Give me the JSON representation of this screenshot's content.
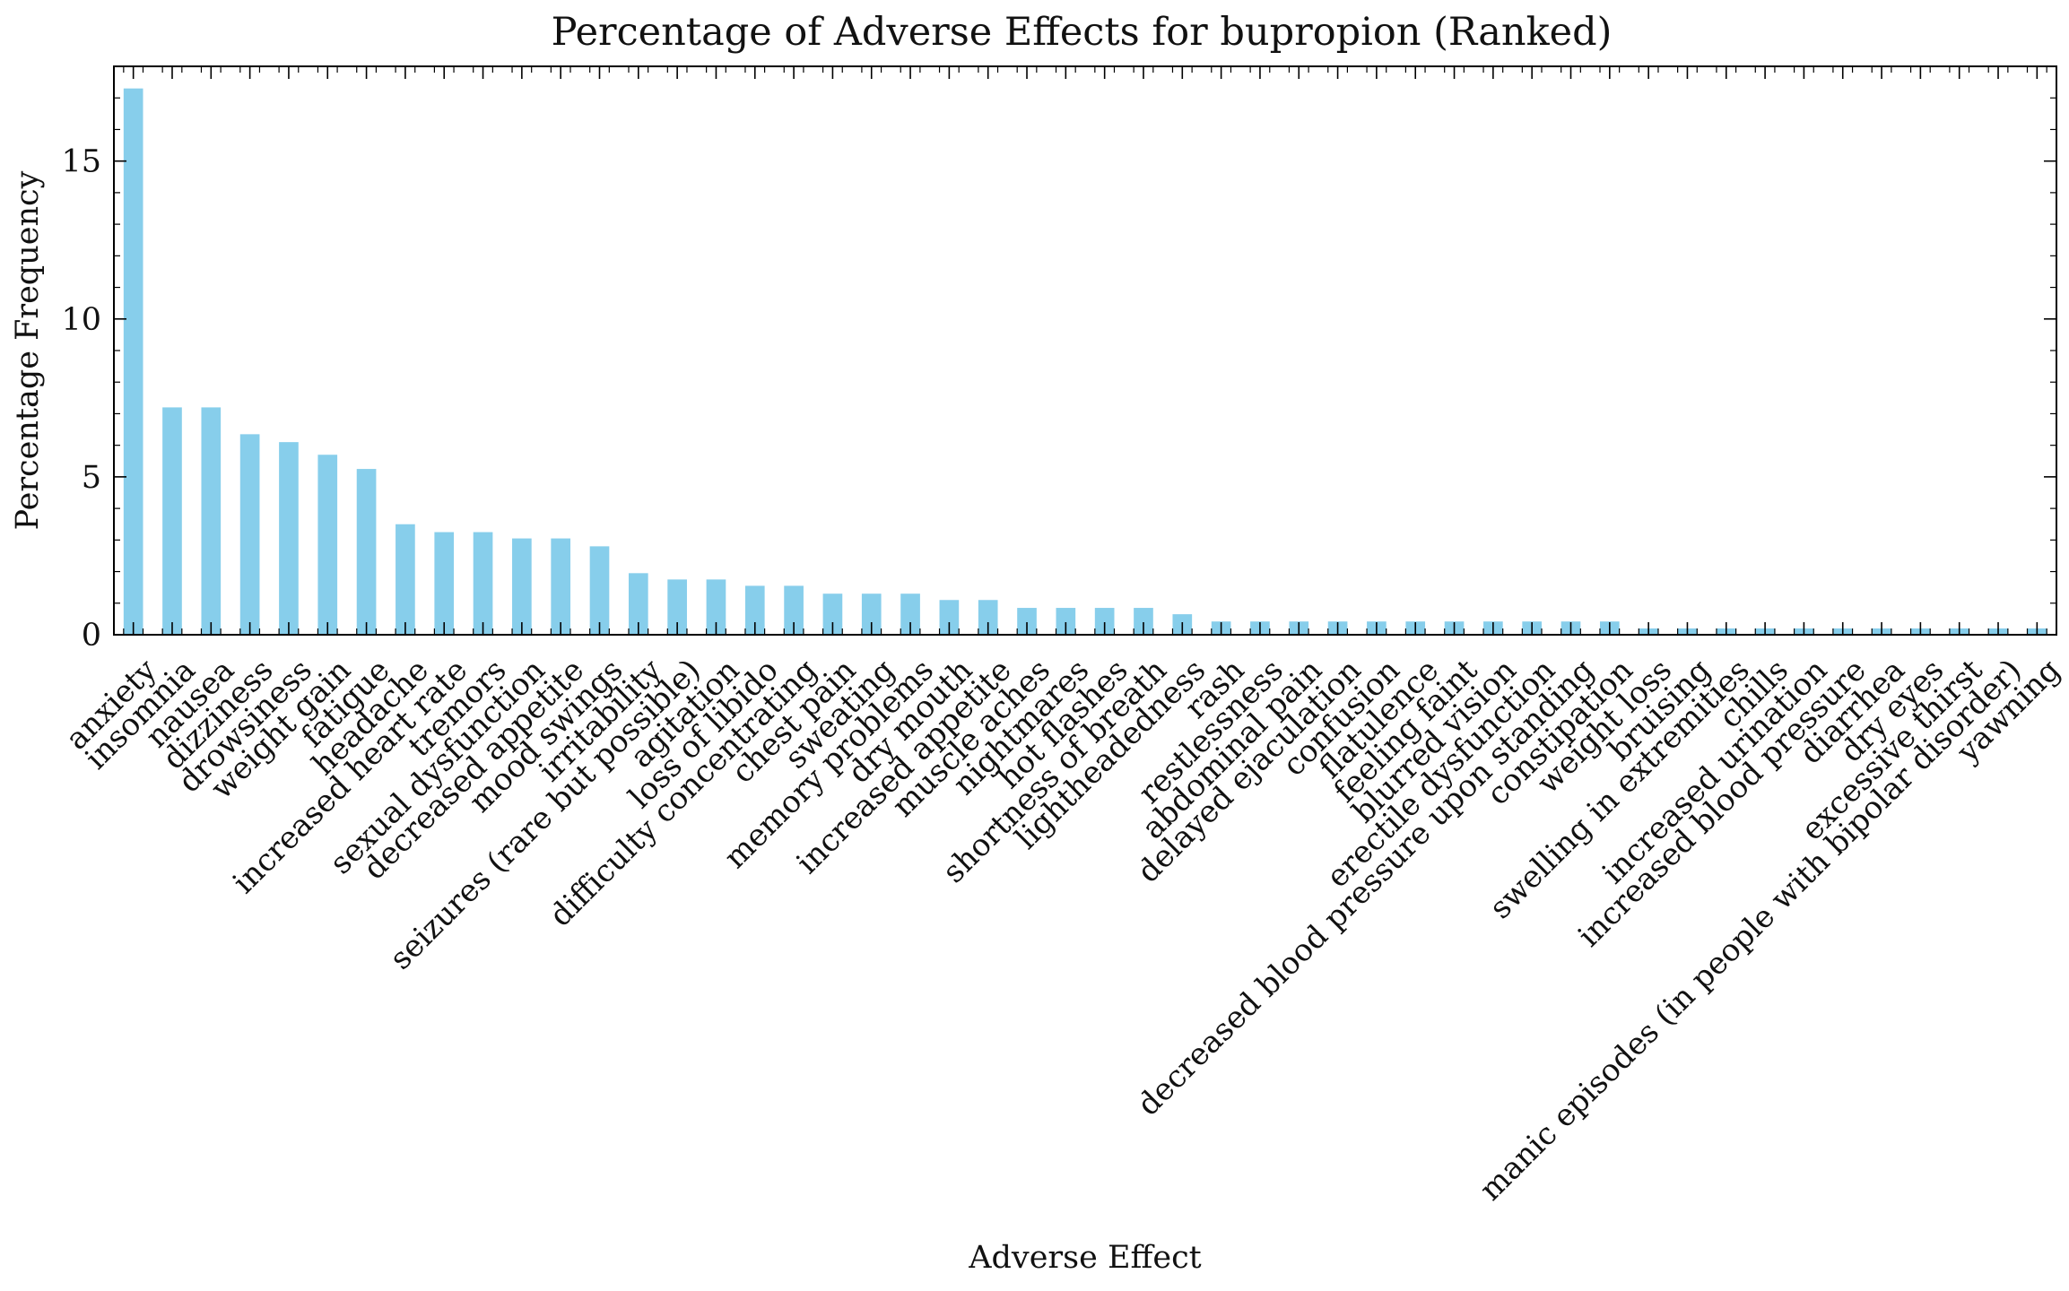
{
  "chart_data": {
    "type": "bar",
    "title": "Percentage of Adverse Effects for bupropion (Ranked)",
    "xlabel": "Adverse Effect",
    "ylabel": "Percentage Frequency",
    "ylim": [
      0,
      18
    ],
    "yticks": [
      0,
      5,
      10,
      15
    ],
    "grid": false,
    "bar_color": "#87ceeb",
    "categories": [
      "anxiety",
      "insomnia",
      "nausea",
      "dizziness",
      "drowsiness",
      "weight gain",
      "fatigue",
      "headache",
      "increased heart rate",
      "tremors",
      "sexual dysfunction",
      "decreased appetite",
      "mood swings",
      "irritability",
      "seizures (rare but possible)",
      "agitation",
      "loss of libido",
      "difficulty concentrating",
      "chest pain",
      "sweating",
      "memory problems",
      "dry mouth",
      "increased appetite",
      "muscle aches",
      "nightmares",
      "hot flashes",
      "shortness of breath",
      "lightheadedness",
      "rash",
      "restlessness",
      "abdominal pain",
      "delayed ejaculation",
      "confusion",
      "flatulence",
      "feeling faint",
      "blurred vision",
      "erectile dysfunction",
      "decreased blood pressure upon standing",
      "constipation",
      "weight loss",
      "bruising",
      "swelling in extremities",
      "chills",
      "increased urination",
      "increased blood pressure",
      "diarrhea",
      "dry eyes",
      "excessive thirst",
      "manic episodes (in people with bipolar disorder)",
      "yawning"
    ],
    "values": [
      17.3,
      7.2,
      7.2,
      6.35,
      6.1,
      5.7,
      5.25,
      3.5,
      3.25,
      3.25,
      3.05,
      3.05,
      2.8,
      1.95,
      1.75,
      1.75,
      1.55,
      1.55,
      1.3,
      1.3,
      1.3,
      1.1,
      1.1,
      0.85,
      0.85,
      0.85,
      0.85,
      0.65,
      0.42,
      0.42,
      0.42,
      0.42,
      0.42,
      0.42,
      0.42,
      0.42,
      0.42,
      0.42,
      0.42,
      0.2,
      0.2,
      0.2,
      0.2,
      0.2,
      0.2,
      0.2,
      0.2,
      0.2,
      0.2,
      0.2
    ]
  }
}
